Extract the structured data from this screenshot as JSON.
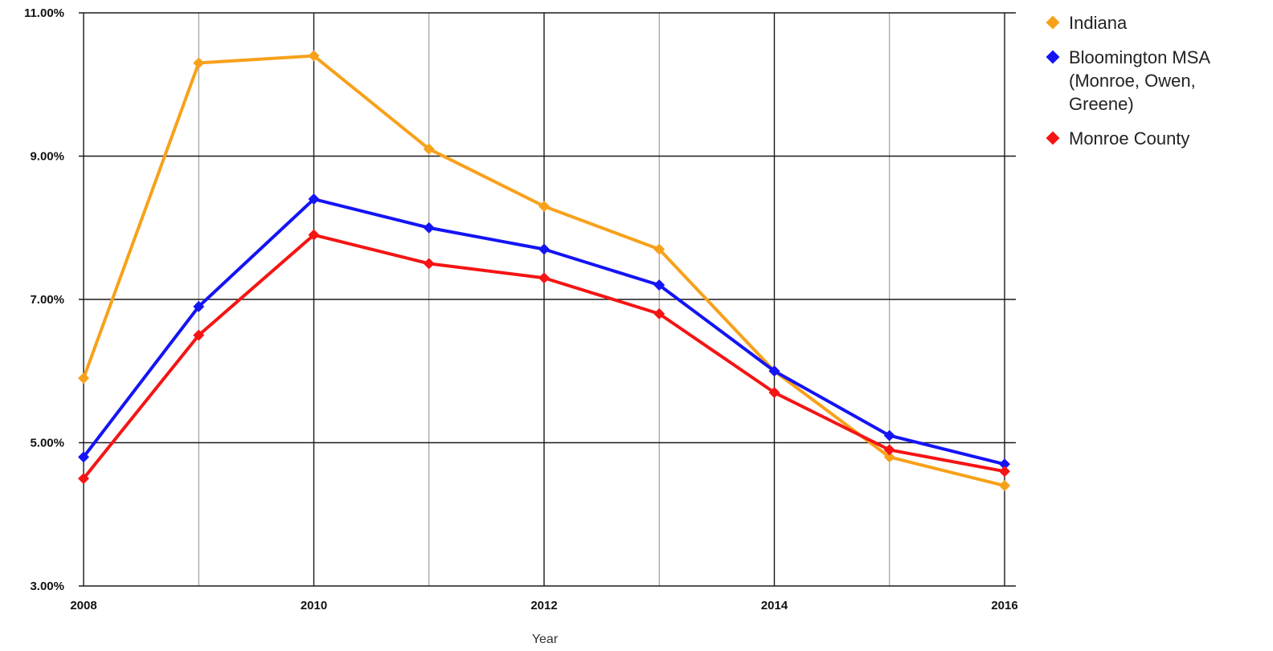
{
  "chart_data": {
    "type": "line",
    "title": "",
    "xlabel": "Year",
    "ylabel": "",
    "x": [
      2008,
      2009,
      2010,
      2011,
      2012,
      2013,
      2014,
      2015,
      2016
    ],
    "x_tick_labels": [
      "2008",
      "2010",
      "2012",
      "2014",
      "2016"
    ],
    "y_tick_values": [
      3,
      5,
      7,
      9,
      11
    ],
    "y_tick_labels": [
      "3.00%",
      "5.00%",
      "7.00%",
      "9.00%",
      "11.00%"
    ],
    "ylim": [
      3,
      11
    ],
    "xlim": [
      2008,
      2016
    ],
    "y_unit": "%",
    "grid": true,
    "legend_position": "right",
    "series": [
      {
        "name": "Indiana",
        "color": "#F7A11A",
        "values": [
          5.9,
          10.3,
          10.4,
          9.1,
          8.3,
          7.7,
          6.0,
          4.8,
          4.4
        ]
      },
      {
        "name": "Bloomington MSA (Monroe, Owen, Greene)",
        "legend_lines": [
          "Bloomington MSA",
          "(Monroe, Owen,",
          "Greene)"
        ],
        "color": "#1414F5",
        "values": [
          4.8,
          6.9,
          8.4,
          8.0,
          7.7,
          7.2,
          6.0,
          5.1,
          4.7
        ]
      },
      {
        "name": "Monroe County",
        "color": "#F51414",
        "values": [
          4.5,
          6.5,
          7.9,
          7.5,
          7.3,
          6.8,
          5.7,
          4.9,
          4.6
        ]
      }
    ]
  }
}
